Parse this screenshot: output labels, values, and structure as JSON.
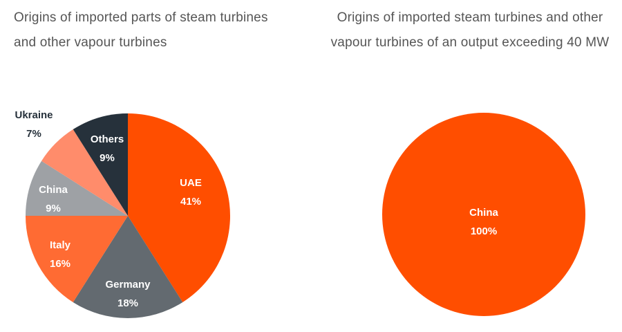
{
  "chart_data": [
    {
      "type": "pie",
      "title": "Origins of imported parts of steam turbines and other vapour turbines",
      "slices": [
        {
          "label": "UAE",
          "value": 41,
          "pct_label": "41%",
          "color": "#FF4E00",
          "text_color": "#ffffff"
        },
        {
          "label": "Germany",
          "value": 18,
          "pct_label": "18%",
          "color": "#636A70",
          "text_color": "#ffffff"
        },
        {
          "label": "Italy",
          "value": 16,
          "pct_label": "16%",
          "color": "#FF6B33",
          "text_color": "#ffffff"
        },
        {
          "label": "China",
          "value": 9,
          "pct_label": "9%",
          "color": "#9EA1A5",
          "text_color": "#ffffff"
        },
        {
          "label": "Ukraine",
          "value": 7,
          "pct_label": "7%",
          "color": "#FF8C6B",
          "text_color": "#26313B"
        },
        {
          "label": "Others",
          "value": 9,
          "pct_label": "9%",
          "color": "#26313B",
          "text_color": "#ffffff"
        }
      ]
    },
    {
      "type": "pie",
      "title": "Origins of imported steam turbines and other vapour turbines of an output exceeding 40 MW",
      "slices": [
        {
          "label": "China",
          "value": 100,
          "pct_label": "100%",
          "color": "#FF4E00",
          "text_color": "#ffffff"
        }
      ]
    }
  ]
}
